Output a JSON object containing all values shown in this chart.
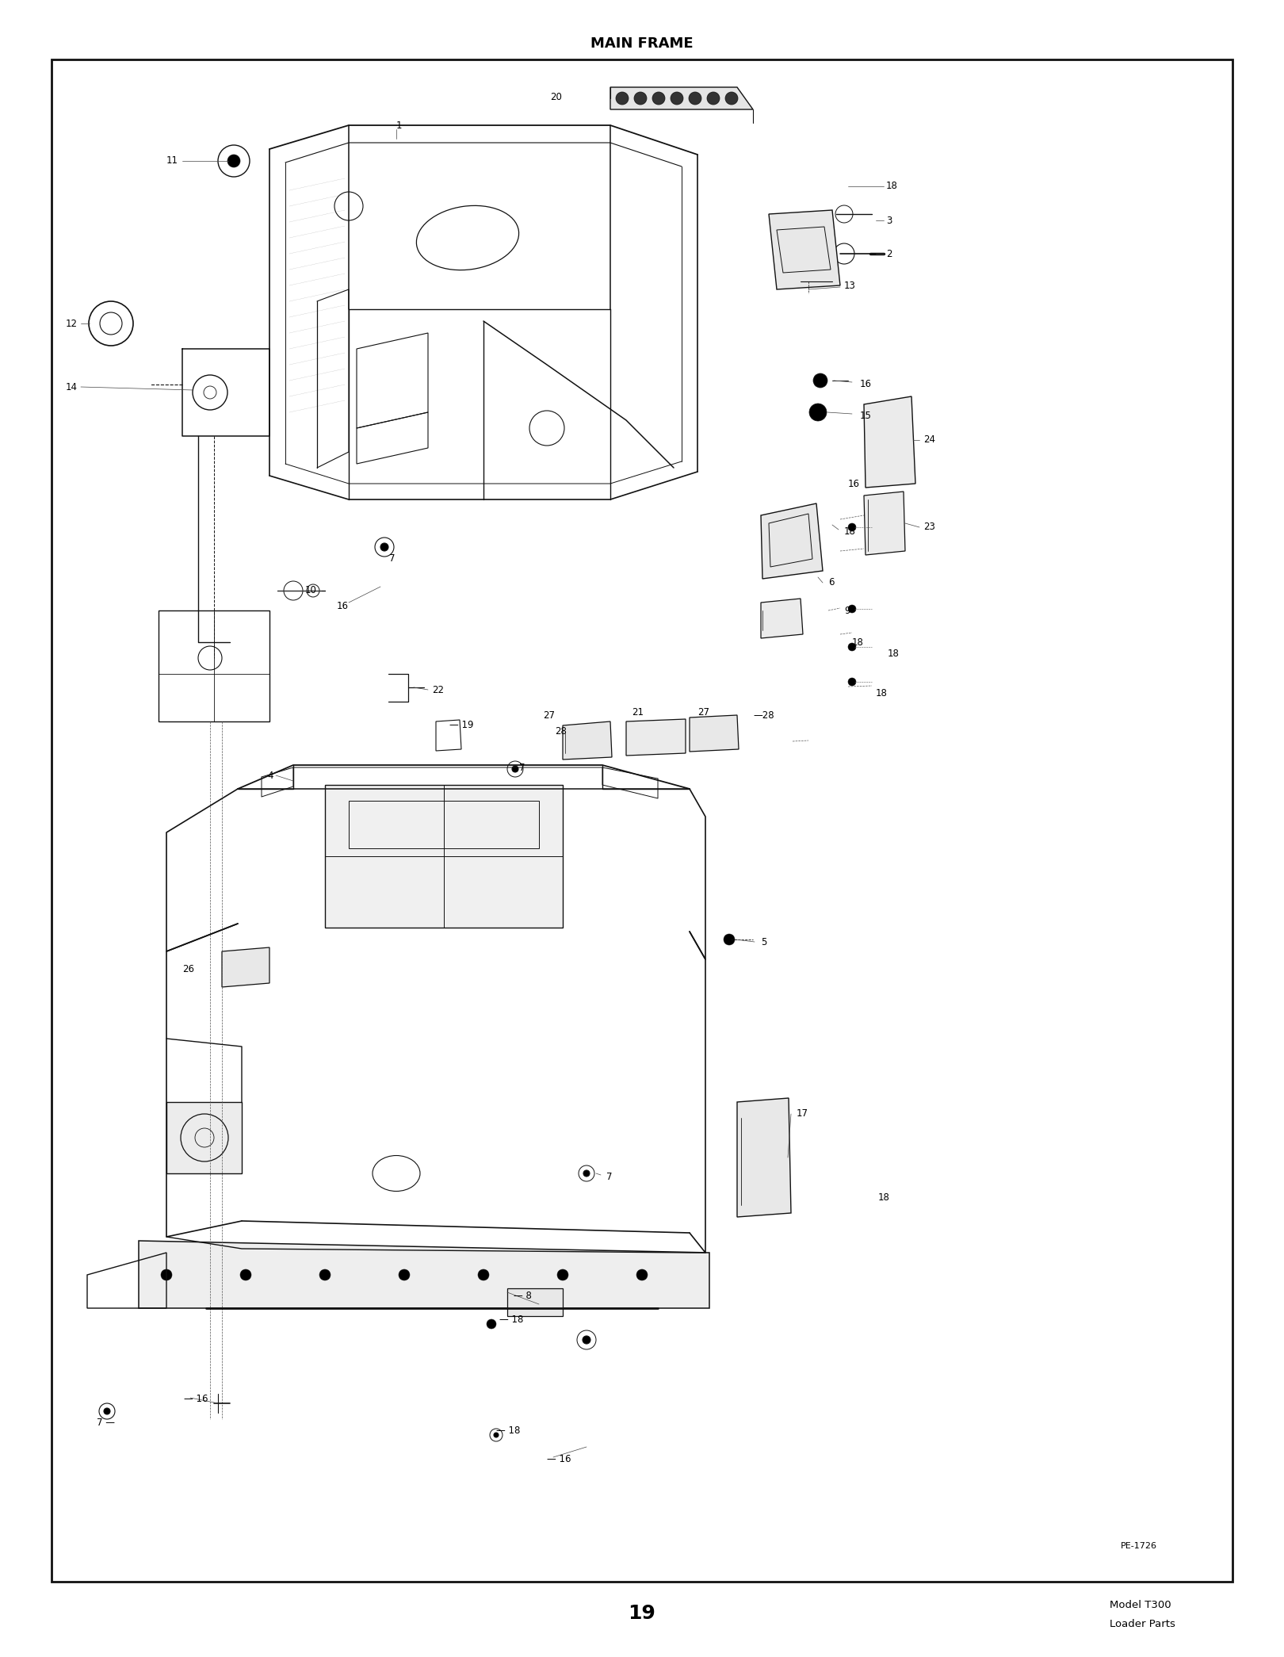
{
  "title": "MAIN FRAME",
  "page_number": "19",
  "model_text": "Model T300",
  "parts_text": "Loader Parts",
  "diagram_id": "PE-1726",
  "background": "#ffffff",
  "border_color": "#000000",
  "text_color": "#000000",
  "title_fontsize": 13,
  "label_fontsize": 8.5,
  "page_num_fontsize": 18,
  "model_fontsize": 9.5,
  "lc": "#111111",
  "lw_main": 1.1,
  "lw_thin": 0.7,
  "lw_dash": 0.6
}
